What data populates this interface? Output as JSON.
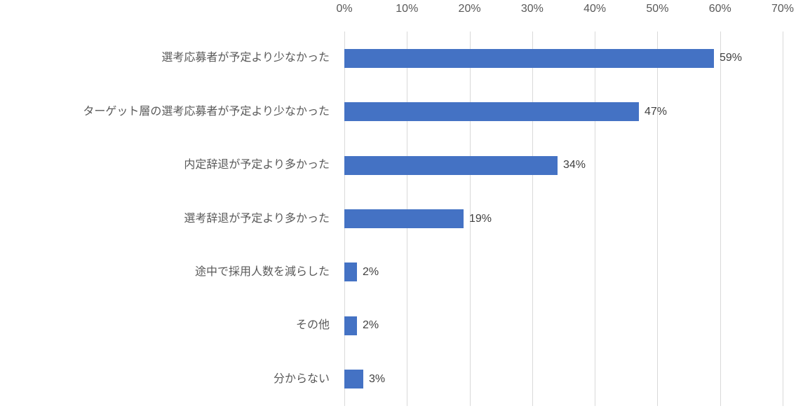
{
  "chart_data": {
    "type": "bar",
    "orientation": "horizontal",
    "title": "",
    "xlabel": "",
    "ylabel": "",
    "categories": [
      "選考応募者が予定より少なかった",
      "ターゲット層の選考応募者が予定より少なかった",
      "内定辞退が予定より多かった",
      "選考辞退が予定より多かった",
      "途中で採用人数を減らした",
      "その他",
      "分からない"
    ],
    "values": [
      59,
      47,
      34,
      19,
      2,
      2,
      3
    ],
    "value_labels": [
      "59%",
      "47%",
      "34%",
      "19%",
      "2%",
      "2%",
      "3%"
    ],
    "x_axis": {
      "position": "top",
      "min": 0,
      "max": 70,
      "step": 10,
      "ticks": [
        "0%",
        "10%",
        "20%",
        "30%",
        "40%",
        "50%",
        "60%",
        "70%"
      ]
    },
    "grid": "vertical-only",
    "legend": "none",
    "colors": {
      "bar": "#4472C4",
      "gridline": "#D9D9D9",
      "axis_text": "#595959",
      "category_text": "#595959",
      "value_text": "#404040",
      "background": "#FFFFFF"
    }
  }
}
